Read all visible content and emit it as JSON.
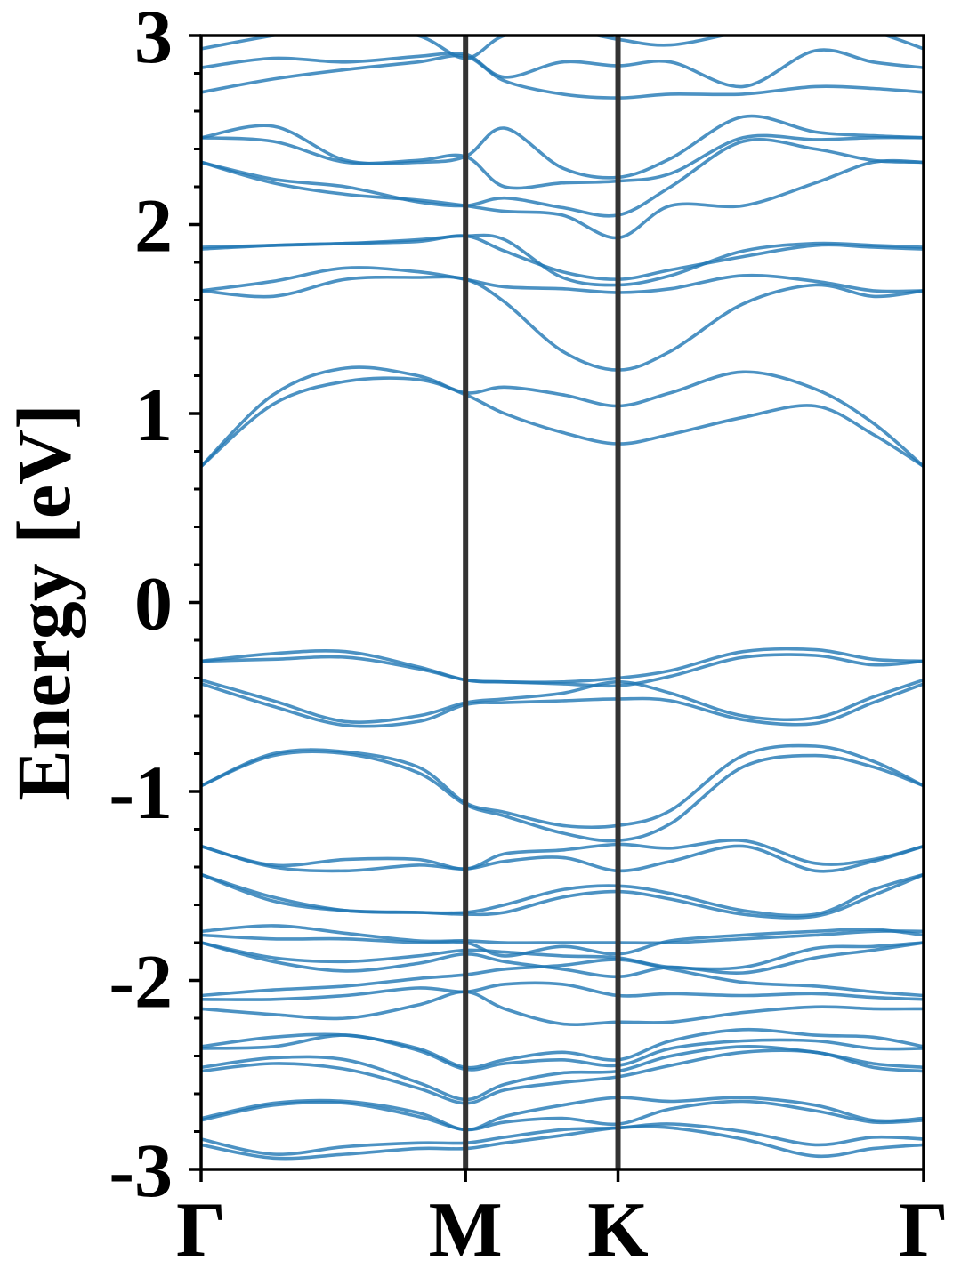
{
  "chart_data": {
    "type": "line",
    "title": "",
    "ylabel": "Energy [eV]",
    "xlabel": "",
    "ylim": [
      -3,
      3
    ],
    "xlim": [
      0,
      1
    ],
    "y_major_ticks": [
      -3,
      -2,
      -1,
      0,
      1,
      2,
      3
    ],
    "y_major_tick_labels": [
      "-3",
      "-2",
      "-1",
      "0",
      "1",
      "2",
      "3"
    ],
    "y_minor_step": 0.2,
    "grid": false,
    "line_color": "#1f77b4",
    "kpoint_line_color": "#333333",
    "kpoints": [
      {
        "label": "Γ",
        "x": 0.0
      },
      {
        "label": "M",
        "x": 0.366
      },
      {
        "label": "K",
        "x": 0.577
      },
      {
        "label": "Γ",
        "x": 1.0
      }
    ],
    "x_samples": [
      0.0,
      0.1,
      0.2,
      0.3,
      0.366,
      0.42,
      0.5,
      0.577,
      0.65,
      0.75,
      0.85,
      0.93,
      1.0
    ],
    "series": [
      {
        "values": [
          2.93,
          3.0,
          3.05,
          3.0,
          2.88,
          3.0,
          3.03,
          2.98,
          2.95,
          3.02,
          3.06,
          3.02,
          2.93
        ]
      },
      {
        "values": [
          2.83,
          2.88,
          2.86,
          2.89,
          2.9,
          2.78,
          2.86,
          2.84,
          2.86,
          2.73,
          2.92,
          2.86,
          2.83
        ]
      },
      {
        "values": [
          2.7,
          2.77,
          2.82,
          2.86,
          2.89,
          2.76,
          2.69,
          2.67,
          2.69,
          2.69,
          2.73,
          2.72,
          2.7
        ]
      },
      {
        "values": [
          2.46,
          2.52,
          2.34,
          2.33,
          2.36,
          2.51,
          2.3,
          2.25,
          2.35,
          2.57,
          2.49,
          2.47,
          2.46
        ]
      },
      {
        "values": [
          2.46,
          2.44,
          2.33,
          2.34,
          2.36,
          2.2,
          2.22,
          2.23,
          2.27,
          2.46,
          2.45,
          2.46,
          2.46
        ]
      },
      {
        "values": [
          2.33,
          2.24,
          2.2,
          2.12,
          2.1,
          2.14,
          2.09,
          2.05,
          2.2,
          2.44,
          2.4,
          2.34,
          2.33
        ]
      },
      {
        "values": [
          2.33,
          2.22,
          2.16,
          2.13,
          2.1,
          2.07,
          2.05,
          1.93,
          2.1,
          2.1,
          2.22,
          2.33,
          2.33
        ]
      },
      {
        "values": [
          1.87,
          1.89,
          1.9,
          1.91,
          1.94,
          1.86,
          1.75,
          1.71,
          1.76,
          1.83,
          1.89,
          1.88,
          1.87
        ]
      },
      {
        "values": [
          1.88,
          1.89,
          1.9,
          1.92,
          1.94,
          1.92,
          1.72,
          1.68,
          1.73,
          1.86,
          1.9,
          1.89,
          1.88
        ]
      },
      {
        "values": [
          1.65,
          1.7,
          1.77,
          1.75,
          1.71,
          1.67,
          1.66,
          1.64,
          1.66,
          1.73,
          1.7,
          1.65,
          1.65
        ]
      },
      {
        "values": [
          1.65,
          1.62,
          1.71,
          1.72,
          1.71,
          1.59,
          1.33,
          1.23,
          1.33,
          1.58,
          1.68,
          1.62,
          1.65
        ]
      },
      {
        "values": [
          0.72,
          1.1,
          1.24,
          1.2,
          1.11,
          1.14,
          1.1,
          1.04,
          1.11,
          1.22,
          1.13,
          0.95,
          0.72
        ]
      },
      {
        "values": [
          0.72,
          1.05,
          1.17,
          1.18,
          1.1,
          1.0,
          0.9,
          0.84,
          0.89,
          0.98,
          1.04,
          0.89,
          0.72
        ]
      },
      {
        "values": [
          -0.31,
          -0.27,
          -0.26,
          -0.34,
          -0.41,
          -0.42,
          -0.42,
          -0.4,
          -0.36,
          -0.26,
          -0.25,
          -0.3,
          -0.31
        ]
      },
      {
        "values": [
          -0.31,
          -0.3,
          -0.29,
          -0.35,
          -0.41,
          -0.42,
          -0.43,
          -0.44,
          -0.39,
          -0.29,
          -0.28,
          -0.33,
          -0.31
        ]
      },
      {
        "values": [
          -0.41,
          -0.52,
          -0.63,
          -0.6,
          -0.53,
          -0.51,
          -0.48,
          -0.42,
          -0.48,
          -0.6,
          -0.61,
          -0.5,
          -0.41
        ]
      },
      {
        "values": [
          -0.43,
          -0.55,
          -0.65,
          -0.63,
          -0.54,
          -0.53,
          -0.52,
          -0.51,
          -0.52,
          -0.62,
          -0.64,
          -0.53,
          -0.43
        ]
      },
      {
        "values": [
          -0.97,
          -0.8,
          -0.79,
          -0.87,
          -1.06,
          -1.11,
          -1.18,
          -1.18,
          -1.1,
          -0.81,
          -0.76,
          -0.84,
          -0.97
        ]
      },
      {
        "values": [
          -0.97,
          -0.81,
          -0.8,
          -0.9,
          -1.07,
          -1.13,
          -1.22,
          -1.26,
          -1.17,
          -0.87,
          -0.81,
          -0.87,
          -0.97
        ]
      },
      {
        "values": [
          -1.29,
          -1.39,
          -1.36,
          -1.36,
          -1.41,
          -1.33,
          -1.31,
          -1.28,
          -1.3,
          -1.26,
          -1.38,
          -1.36,
          -1.29
        ]
      },
      {
        "values": [
          -1.29,
          -1.4,
          -1.42,
          -1.39,
          -1.41,
          -1.37,
          -1.35,
          -1.42,
          -1.37,
          -1.29,
          -1.42,
          -1.37,
          -1.29
        ]
      },
      {
        "values": [
          -1.44,
          -1.56,
          -1.63,
          -1.64,
          -1.64,
          -1.6,
          -1.52,
          -1.5,
          -1.54,
          -1.63,
          -1.65,
          -1.52,
          -1.44
        ]
      },
      {
        "values": [
          -1.44,
          -1.58,
          -1.63,
          -1.64,
          -1.65,
          -1.64,
          -1.56,
          -1.53,
          -1.57,
          -1.65,
          -1.66,
          -1.55,
          -1.44
        ]
      },
      {
        "values": [
          -1.74,
          -1.71,
          -1.75,
          -1.79,
          -1.79,
          -1.8,
          -1.8,
          -1.8,
          -1.8,
          -1.78,
          -1.76,
          -1.74,
          -1.74
        ]
      },
      {
        "values": [
          -1.76,
          -1.78,
          -1.78,
          -1.8,
          -1.8,
          -1.87,
          -1.82,
          -1.86,
          -1.79,
          -1.76,
          -1.74,
          -1.73,
          -1.76
        ]
      },
      {
        "values": [
          -1.8,
          -1.88,
          -1.9,
          -1.87,
          -1.84,
          -1.85,
          -1.87,
          -1.88,
          -1.93,
          -1.93,
          -1.83,
          -1.82,
          -1.8
        ]
      },
      {
        "values": [
          -1.8,
          -1.9,
          -1.95,
          -1.91,
          -1.86,
          -1.9,
          -1.94,
          -1.98,
          -1.93,
          -1.96,
          -1.88,
          -1.84,
          -1.8
        ]
      },
      {
        "values": [
          -2.08,
          -2.05,
          -2.03,
          -1.99,
          -1.97,
          -1.94,
          -1.92,
          -1.89,
          -1.94,
          -2.01,
          -2.03,
          -2.06,
          -2.08
        ]
      },
      {
        "values": [
          -2.1,
          -2.1,
          -2.08,
          -2.04,
          -2.06,
          -2.02,
          -2.02,
          -2.08,
          -2.07,
          -2.08,
          -2.07,
          -2.09,
          -2.1
        ]
      },
      {
        "values": [
          -2.15,
          -2.18,
          -2.2,
          -2.13,
          -2.06,
          -2.15,
          -2.23,
          -2.22,
          -2.22,
          -2.17,
          -2.14,
          -2.15,
          -2.15
        ]
      },
      {
        "values": [
          -2.35,
          -2.3,
          -2.29,
          -2.36,
          -2.46,
          -2.42,
          -2.38,
          -2.42,
          -2.32,
          -2.26,
          -2.29,
          -2.3,
          -2.35
        ]
      },
      {
        "values": [
          -2.36,
          -2.35,
          -2.29,
          -2.37,
          -2.47,
          -2.44,
          -2.42,
          -2.45,
          -2.36,
          -2.32,
          -2.32,
          -2.36,
          -2.36
        ]
      },
      {
        "values": [
          -2.46,
          -2.41,
          -2.42,
          -2.54,
          -2.63,
          -2.55,
          -2.49,
          -2.48,
          -2.4,
          -2.35,
          -2.38,
          -2.44,
          -2.46
        ]
      },
      {
        "values": [
          -2.48,
          -2.44,
          -2.47,
          -2.57,
          -2.65,
          -2.58,
          -2.54,
          -2.51,
          -2.45,
          -2.38,
          -2.38,
          -2.46,
          -2.48
        ]
      },
      {
        "values": [
          -2.73,
          -2.65,
          -2.64,
          -2.7,
          -2.79,
          -2.72,
          -2.66,
          -2.62,
          -2.64,
          -2.62,
          -2.66,
          -2.74,
          -2.73
        ]
      },
      {
        "values": [
          -2.74,
          -2.66,
          -2.65,
          -2.72,
          -2.79,
          -2.75,
          -2.73,
          -2.76,
          -2.68,
          -2.64,
          -2.69,
          -2.75,
          -2.74
        ]
      },
      {
        "values": [
          -2.84,
          -2.92,
          -2.88,
          -2.86,
          -2.86,
          -2.83,
          -2.79,
          -2.78,
          -2.76,
          -2.8,
          -2.87,
          -2.83,
          -2.84
        ]
      },
      {
        "values": [
          -2.87,
          -2.94,
          -2.92,
          -2.89,
          -2.89,
          -2.86,
          -2.82,
          -2.78,
          -2.78,
          -2.84,
          -2.93,
          -2.89,
          -2.87
        ]
      }
    ]
  }
}
